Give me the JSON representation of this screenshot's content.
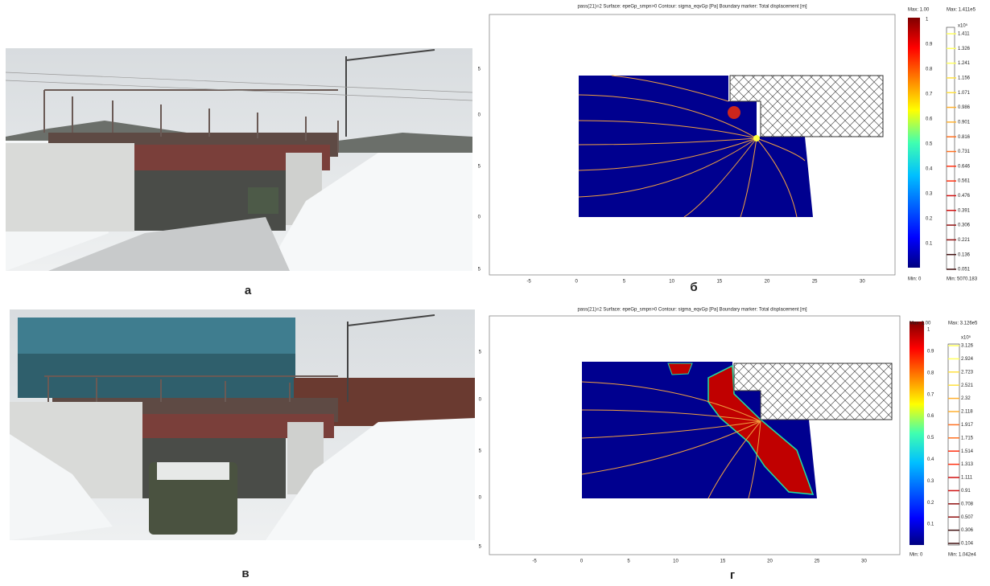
{
  "panels": [
    {
      "label": "а"
    },
    {
      "label": "б",
      "header": "pass(21)=2    Surface: epeGp_smpn>0    Contour: sigma_eqvGp [Pa]    Boundary marker: Total displacement [m]",
      "x_ticks": [
        "-5",
        "0",
        "5",
        "10",
        "15",
        "20",
        "25",
        "30"
      ],
      "y_ticks": [
        "5",
        "0",
        "5",
        "0",
        "5"
      ],
      "colorbar_left": {
        "max": "Max: 1.00",
        "ticks": [
          "1",
          "0.9",
          "0.8",
          "0.7",
          "0.6",
          "0.5",
          "0.4",
          "0.3",
          "0.2",
          "0.1"
        ],
        "min": "Min: 0"
      },
      "colorbar_right": {
        "max": "Max: 1.411e5",
        "exponent": "x10⁵",
        "ticks": [
          "1.411",
          "1.326",
          "1.241",
          "1.156",
          "1.071",
          "0.986",
          "0.901",
          "0.816",
          "0.731",
          "0.646",
          "0.561",
          "0.476",
          "0.391",
          "0.306",
          "0.221",
          "0.136",
          "0.051"
        ],
        "min": "Min: 5070.183"
      }
    },
    {
      "label": "в"
    },
    {
      "label": "г",
      "header": "pass(21)=2    Surface: epeGp_smpn>0    Contour: sigma_eqvGp [Pa]    Boundary marker: Total displacement [m]",
      "x_ticks": [
        "-5",
        "0",
        "5",
        "10",
        "15",
        "20",
        "25",
        "30"
      ],
      "y_ticks": [
        "5",
        "0",
        "5",
        "0",
        "5"
      ],
      "colorbar_left": {
        "max": "Max: 1.00",
        "ticks": [
          "1",
          "0.9",
          "0.8",
          "0.7",
          "0.6",
          "0.5",
          "0.4",
          "0.3",
          "0.2",
          "0.1"
        ],
        "min": "Min: 0"
      },
      "colorbar_right": {
        "max": "Max: 3.126e5",
        "exponent": "x10⁵",
        "ticks": [
          "3.126",
          "2.924",
          "2.723",
          "2.521",
          "2.32",
          "2.118",
          "1.917",
          "1.715",
          "1.514",
          "1.313",
          "1.111",
          "0.91",
          "0.708",
          "0.507",
          "0.306",
          "0.104"
        ],
        "min": "Min: 1.042e4"
      }
    }
  ]
}
